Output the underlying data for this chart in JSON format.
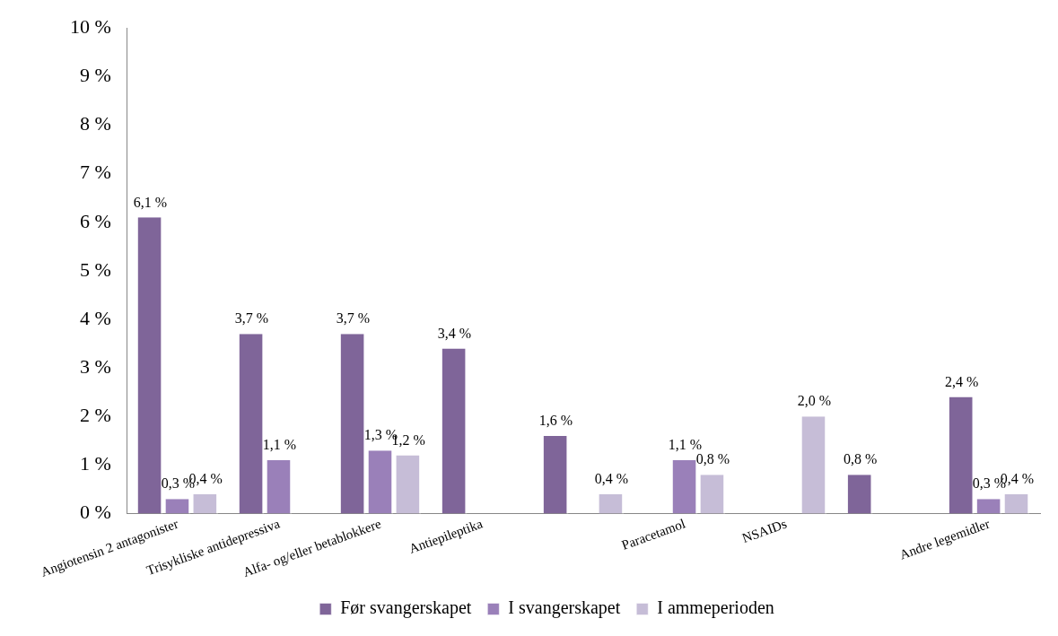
{
  "chart_data": {
    "type": "bar",
    "categories": [
      "Angiotensin 2 antagonister",
      "Trisykliske antidepressiva",
      "Alfa- og/eller betablokkere",
      "Antiepileptika",
      null,
      "Paracetamol",
      "NSAIDs",
      null,
      "Andre legemidler"
    ],
    "series": [
      {
        "name": "Før svangerskapet",
        "color": "#7f6599",
        "values": [
          6.1,
          3.7,
          3.7,
          3.4,
          1.6,
          null,
          null,
          0.8,
          2.4
        ],
        "value_labels": [
          "6,1 %",
          "3,7 %",
          "3,7 %",
          "3,4 %",
          "1,6 %",
          null,
          null,
          "0,8 %",
          "2,4 %"
        ]
      },
      {
        "name": "I svangerskapet",
        "color": "#9a80b9",
        "values": [
          0.3,
          1.1,
          1.3,
          null,
          null,
          1.1,
          null,
          null,
          0.3
        ],
        "value_labels": [
          "0,3 %",
          "1,1 %",
          "1,3 %",
          null,
          null,
          "1,1 %",
          null,
          null,
          "0,3 %"
        ]
      },
      {
        "name": "I ammeperioden",
        "color": "#c6bdd7",
        "values": [
          0.4,
          null,
          1.2,
          null,
          0.4,
          0.8,
          2.0,
          null,
          0.4
        ],
        "value_labels": [
          "0,4 %",
          null,
          "1,2 %",
          null,
          "0,4 %",
          "0,8 %",
          "2,0 %",
          null,
          "0,4 %"
        ]
      }
    ],
    "ylim": [
      0,
      10
    ],
    "yticks": [
      {
        "value": 0,
        "label": "0 %"
      },
      {
        "value": 1,
        "label": "1 %"
      },
      {
        "value": 2,
        "label": "2 %"
      },
      {
        "value": 3,
        "label": "3 %"
      },
      {
        "value": 4,
        "label": "4 %"
      },
      {
        "value": 5,
        "label": "5 %"
      },
      {
        "value": 6,
        "label": "6 %"
      },
      {
        "value": 7,
        "label": "7 %"
      },
      {
        "value": 8,
        "label": "8 %"
      },
      {
        "value": 9,
        "label": "9 %"
      },
      {
        "value": 10,
        "label": "10 %"
      }
    ],
    "grid": false,
    "legend": "bottom"
  }
}
